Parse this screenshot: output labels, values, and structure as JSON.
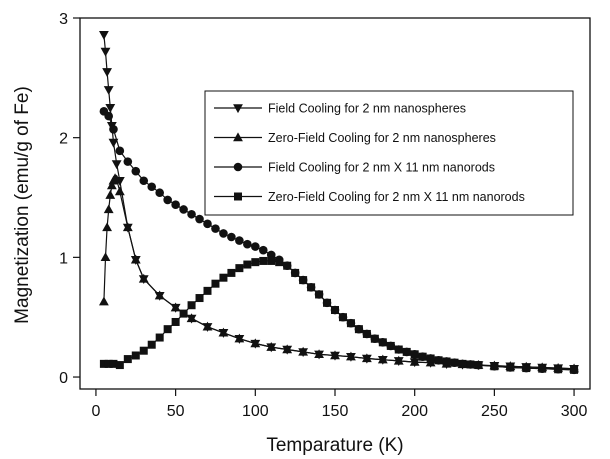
{
  "chart_data": {
    "type": "line",
    "xlabel": "Temparature (K)",
    "ylabel": "Magnetization (emu/g of Fe)",
    "xlim": [
      -10,
      310
    ],
    "ylim": [
      -0.1,
      3.0
    ],
    "xticks": [
      0,
      50,
      100,
      150,
      200,
      250,
      300
    ],
    "yticks": [
      0,
      1,
      2,
      3
    ],
    "grid": false,
    "legend_position": "top-right",
    "series": [
      {
        "name": "Field Cooling for 2 nm nanospheres",
        "marker": "triangle-down",
        "points": [
          [
            5,
            2.86
          ],
          [
            6,
            2.72
          ],
          [
            7,
            2.55
          ],
          [
            8,
            2.4
          ],
          [
            9,
            2.25
          ],
          [
            10,
            2.1
          ],
          [
            11,
            1.96
          ],
          [
            13,
            1.78
          ],
          [
            15,
            1.64
          ],
          [
            20,
            1.25
          ],
          [
            25,
            0.98
          ],
          [
            30,
            0.82
          ],
          [
            40,
            0.68
          ],
          [
            50,
            0.58
          ],
          [
            60,
            0.49
          ],
          [
            70,
            0.42
          ],
          [
            80,
            0.37
          ],
          [
            90,
            0.32
          ],
          [
            100,
            0.28
          ],
          [
            110,
            0.25
          ],
          [
            120,
            0.23
          ],
          [
            130,
            0.21
          ],
          [
            140,
            0.19
          ],
          [
            150,
            0.18
          ],
          [
            160,
            0.17
          ],
          [
            170,
            0.155
          ],
          [
            180,
            0.145
          ],
          [
            190,
            0.135
          ],
          [
            200,
            0.125
          ],
          [
            210,
            0.12
          ],
          [
            220,
            0.11
          ],
          [
            230,
            0.105
          ],
          [
            240,
            0.1
          ],
          [
            250,
            0.095
          ],
          [
            260,
            0.09
          ],
          [
            270,
            0.085
          ],
          [
            280,
            0.08
          ],
          [
            290,
            0.075
          ],
          [
            300,
            0.07
          ]
        ]
      },
      {
        "name": "Zero-Field Cooling for 2 nm nanospheres",
        "marker": "triangle-up",
        "points": [
          [
            5,
            0.63
          ],
          [
            6,
            1.0
          ],
          [
            7,
            1.25
          ],
          [
            8,
            1.4
          ],
          [
            9,
            1.52
          ],
          [
            10,
            1.6
          ],
          [
            11,
            1.64
          ],
          [
            12,
            1.66
          ],
          [
            13,
            1.65
          ],
          [
            15,
            1.55
          ],
          [
            20,
            1.25
          ],
          [
            25,
            0.98
          ],
          [
            30,
            0.82
          ],
          [
            40,
            0.68
          ],
          [
            50,
            0.58
          ],
          [
            60,
            0.49
          ],
          [
            70,
            0.42
          ],
          [
            80,
            0.37
          ],
          [
            90,
            0.32
          ],
          [
            100,
            0.28
          ],
          [
            110,
            0.25
          ],
          [
            120,
            0.23
          ],
          [
            130,
            0.21
          ],
          [
            140,
            0.19
          ],
          [
            150,
            0.18
          ],
          [
            160,
            0.17
          ],
          [
            170,
            0.155
          ],
          [
            180,
            0.145
          ],
          [
            190,
            0.135
          ],
          [
            200,
            0.125
          ],
          [
            210,
            0.12
          ],
          [
            220,
            0.11
          ],
          [
            230,
            0.105
          ],
          [
            240,
            0.1
          ],
          [
            250,
            0.095
          ],
          [
            260,
            0.09
          ],
          [
            270,
            0.085
          ],
          [
            280,
            0.08
          ],
          [
            290,
            0.075
          ],
          [
            300,
            0.07
          ]
        ]
      },
      {
        "name": "Field Cooling for 2 nm X 11 nm nanorods",
        "marker": "circle",
        "points": [
          [
            5,
            2.22
          ],
          [
            8,
            2.18
          ],
          [
            11,
            2.07
          ],
          [
            15,
            1.89
          ],
          [
            20,
            1.8
          ],
          [
            25,
            1.72
          ],
          [
            30,
            1.64
          ],
          [
            35,
            1.59
          ],
          [
            40,
            1.54
          ],
          [
            45,
            1.48
          ],
          [
            50,
            1.44
          ],
          [
            55,
            1.4
          ],
          [
            60,
            1.36
          ],
          [
            65,
            1.32
          ],
          [
            70,
            1.28
          ],
          [
            75,
            1.24
          ],
          [
            80,
            1.2
          ],
          [
            85,
            1.17
          ],
          [
            90,
            1.14
          ],
          [
            95,
            1.11
          ],
          [
            100,
            1.09
          ],
          [
            105,
            1.06
          ],
          [
            110,
            1.02
          ],
          [
            115,
            0.98
          ],
          [
            120,
            0.93
          ],
          [
            125,
            0.87
          ],
          [
            130,
            0.81
          ],
          [
            135,
            0.75
          ],
          [
            140,
            0.69
          ],
          [
            145,
            0.62
          ],
          [
            150,
            0.56
          ],
          [
            155,
            0.5
          ],
          [
            160,
            0.45
          ],
          [
            165,
            0.4
          ],
          [
            170,
            0.36
          ],
          [
            175,
            0.32
          ],
          [
            180,
            0.29
          ],
          [
            185,
            0.26
          ],
          [
            190,
            0.23
          ],
          [
            195,
            0.21
          ],
          [
            200,
            0.19
          ],
          [
            205,
            0.17
          ],
          [
            210,
            0.155
          ],
          [
            215,
            0.14
          ],
          [
            220,
            0.13
          ],
          [
            225,
            0.12
          ],
          [
            230,
            0.11
          ],
          [
            235,
            0.105
          ],
          [
            240,
            0.1
          ],
          [
            250,
            0.09
          ],
          [
            260,
            0.08
          ],
          [
            270,
            0.075
          ],
          [
            280,
            0.07
          ],
          [
            290,
            0.065
          ],
          [
            300,
            0.06
          ]
        ]
      },
      {
        "name": "Zero-Field Cooling for 2 nm X 11 nm nanorods",
        "marker": "square",
        "points": [
          [
            5,
            0.11
          ],
          [
            8,
            0.11
          ],
          [
            11,
            0.11
          ],
          [
            15,
            0.1
          ],
          [
            20,
            0.15
          ],
          [
            25,
            0.18
          ],
          [
            30,
            0.22
          ],
          [
            35,
            0.27
          ],
          [
            40,
            0.33
          ],
          [
            45,
            0.4
          ],
          [
            50,
            0.46
          ],
          [
            55,
            0.53
          ],
          [
            60,
            0.6
          ],
          [
            65,
            0.66
          ],
          [
            70,
            0.72
          ],
          [
            75,
            0.78
          ],
          [
            80,
            0.83
          ],
          [
            85,
            0.87
          ],
          [
            90,
            0.91
          ],
          [
            95,
            0.94
          ],
          [
            100,
            0.96
          ],
          [
            105,
            0.97
          ],
          [
            110,
            0.97
          ],
          [
            115,
            0.96
          ],
          [
            120,
            0.93
          ],
          [
            125,
            0.87
          ],
          [
            130,
            0.81
          ],
          [
            135,
            0.75
          ],
          [
            140,
            0.69
          ],
          [
            145,
            0.62
          ],
          [
            150,
            0.56
          ],
          [
            155,
            0.5
          ],
          [
            160,
            0.45
          ],
          [
            165,
            0.4
          ],
          [
            170,
            0.36
          ],
          [
            175,
            0.32
          ],
          [
            180,
            0.29
          ],
          [
            185,
            0.26
          ],
          [
            190,
            0.23
          ],
          [
            195,
            0.21
          ],
          [
            200,
            0.19
          ],
          [
            205,
            0.17
          ],
          [
            210,
            0.155
          ],
          [
            215,
            0.14
          ],
          [
            220,
            0.13
          ],
          [
            225,
            0.12
          ],
          [
            230,
            0.11
          ],
          [
            235,
            0.105
          ],
          [
            240,
            0.1
          ],
          [
            250,
            0.09
          ],
          [
            260,
            0.08
          ],
          [
            270,
            0.075
          ],
          [
            280,
            0.07
          ],
          [
            290,
            0.065
          ],
          [
            300,
            0.06
          ]
        ]
      }
    ]
  }
}
